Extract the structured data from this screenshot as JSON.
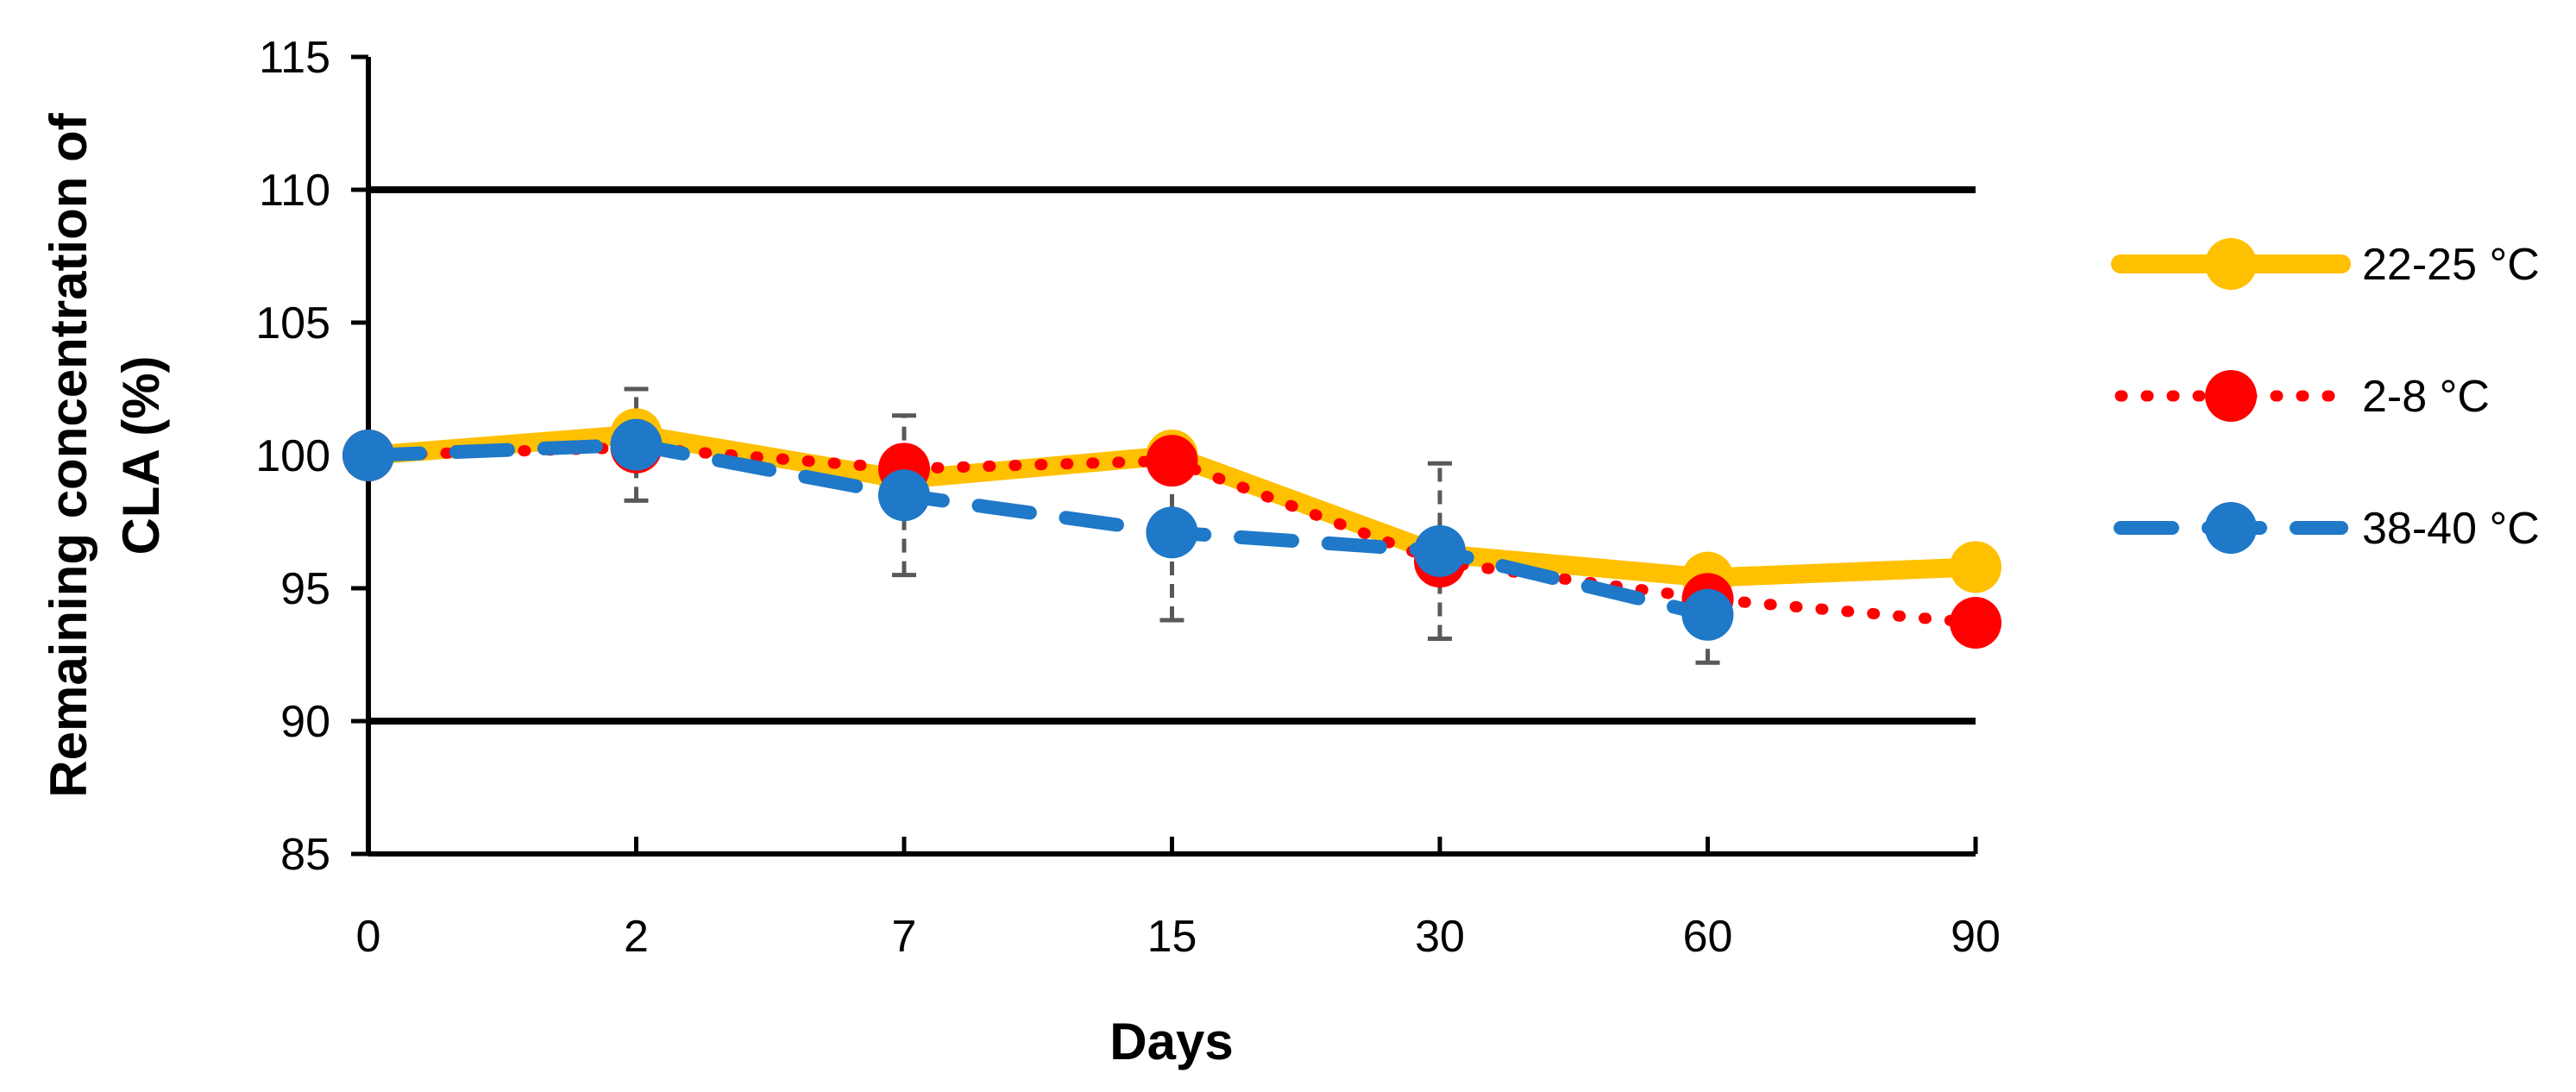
{
  "chart_data": {
    "type": "line",
    "title": "",
    "xlabel": "Days",
    "ylabel_lines": [
      "Remaining concentration of",
      "CLA (%)"
    ],
    "categories": [
      "0",
      "2",
      "7",
      "15",
      "30",
      "60",
      "90"
    ],
    "ylim": [
      85,
      115
    ],
    "yticks": [
      "85",
      "90",
      "95",
      "100",
      "105",
      "110",
      "115"
    ],
    "reference_lines": [
      90,
      110
    ],
    "legend_position": "right",
    "series": [
      {
        "name": "22-25 °C",
        "color": "#FFC000",
        "style": "solid",
        "values": [
          100,
          100.8,
          99.1,
          100.0,
          96.3,
          95.4,
          95.8
        ],
        "errors": [
          0,
          0,
          0,
          0,
          0,
          0,
          0
        ]
      },
      {
        "name": "2-8 °C",
        "color": "#FF0000",
        "style": "dotted",
        "values": [
          100,
          100.3,
          99.5,
          99.8,
          96.0,
          94.6,
          93.7
        ],
        "errors": [
          0,
          0,
          0,
          0,
          0,
          0,
          0
        ]
      },
      {
        "name": "38-40 °C",
        "color": "#1F78C8",
        "style": "dashed",
        "values": [
          100,
          100.4,
          98.5,
          97.1,
          96.4,
          94.0,
          null
        ],
        "errors": [
          0,
          2.1,
          3.0,
          3.3,
          3.3,
          1.8,
          0
        ]
      }
    ]
  }
}
